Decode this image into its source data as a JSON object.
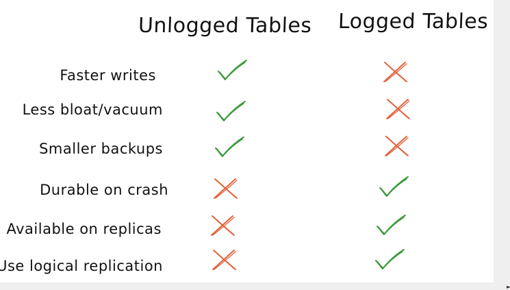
{
  "columns": {
    "unlogged": "Unlogged Tables",
    "logged": "Logged Tables"
  },
  "rows": [
    {
      "label": "Faster writes",
      "unlogged": "check",
      "logged": "cross"
    },
    {
      "label": "Less bloat/vacuum",
      "unlogged": "check",
      "logged": "cross"
    },
    {
      "label": "Smaller backups",
      "unlogged": "check",
      "logged": "cross"
    },
    {
      "label": "Durable on crash",
      "unlogged": "cross",
      "logged": "check"
    },
    {
      "label": "Available on replicas",
      "unlogged": "cross",
      "logged": "check"
    },
    {
      "label": "Use logical replication",
      "unlogged": "cross",
      "logged": "check"
    }
  ],
  "colors": {
    "check": "#3a9a3a",
    "cross": "#e2623a",
    "text": "#111111"
  },
  "icons": {
    "check": "check-icon",
    "cross": "cross-icon"
  }
}
